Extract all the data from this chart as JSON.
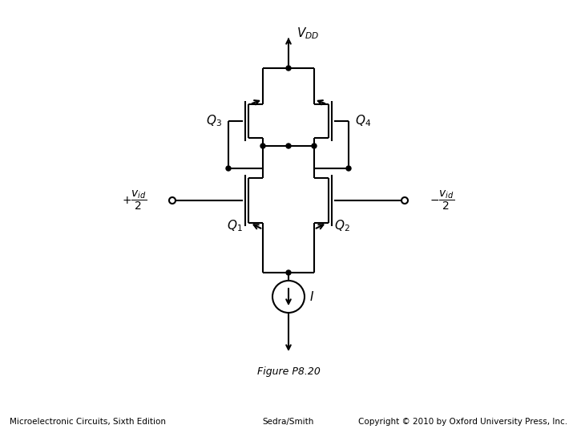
{
  "title": "Figure P8.20",
  "bottom_left": "Microelectronic Circuits, Sixth Edition",
  "bottom_center": "Sedra/Smith",
  "bottom_right": "Copyright © 2010 by Oxford University Press, Inc.",
  "label_Q1": "$Q_1$",
  "label_Q2": "$Q_2$",
  "label_Q3": "$Q_3$",
  "label_Q4": "$Q_4$",
  "label_VDD": "$V_{DD}$",
  "label_I": "$I$",
  "label_vid_left": "$+\\dfrac{v_{id}}{2}$",
  "label_vid_right": "$-\\dfrac{v_{id}}{2}$",
  "line_color": "#000000",
  "bg_color": "#ffffff",
  "fig_width": 7.2,
  "fig_height": 5.4
}
